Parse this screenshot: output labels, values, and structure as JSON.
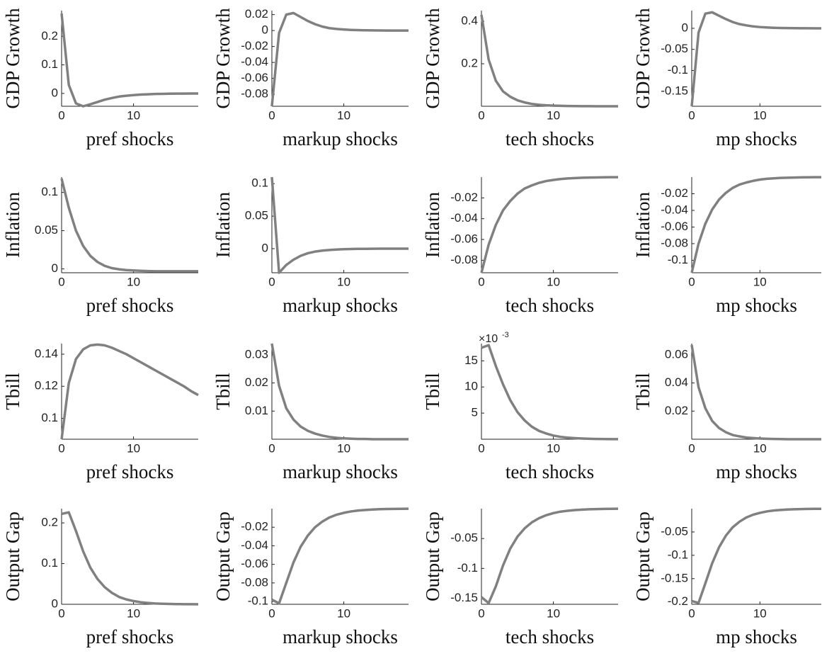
{
  "chart_data": [
    {
      "type": "line",
      "ylabel": "GDP Growth",
      "xlabel": "pref shocks",
      "x": [
        0,
        1,
        2,
        3,
        4,
        5,
        6,
        7,
        8,
        9,
        10,
        11,
        12,
        13,
        14,
        15,
        16,
        17,
        18,
        19
      ],
      "xlim": [
        0,
        19
      ],
      "xticks": [
        0,
        10
      ],
      "ylim": [
        -0.045,
        0.29
      ],
      "yticks": [
        0,
        0.1,
        0.2
      ],
      "series": [
        {
          "color": "#808080",
          "values": [
            0.28,
            0.03,
            -0.035,
            -0.045,
            -0.038,
            -0.03,
            -0.022,
            -0.016,
            -0.011,
            -0.008,
            -0.006,
            -0.004,
            -0.003,
            -0.002,
            -0.0015,
            -0.001,
            -0.0007,
            -0.0005,
            -0.0003,
            -0.0002
          ]
        }
      ]
    },
    {
      "type": "line",
      "ylabel": "GDP Growth",
      "xlabel": "markup shocks",
      "x": [
        0,
        1,
        2,
        3,
        4,
        5,
        6,
        7,
        8,
        9,
        10,
        11,
        12,
        13,
        14,
        15,
        16,
        17,
        18,
        19
      ],
      "xlim": [
        0,
        19
      ],
      "xticks": [
        0,
        10
      ],
      "ylim": [
        -0.095,
        0.025
      ],
      "yticks": [
        -0.08,
        -0.06,
        -0.04,
        -0.02,
        0,
        0.02
      ],
      "series": [
        {
          "color": "#808080",
          "values": [
            -0.095,
            -0.003,
            0.02,
            0.022,
            0.017,
            0.012,
            0.008,
            0.005,
            0.003,
            0.002,
            0.0013,
            0.0008,
            0.0005,
            0.0003,
            0.0002,
            0.0001,
            0,
            0,
            0,
            0
          ]
        }
      ]
    },
    {
      "type": "line",
      "ylabel": "GDP Growth",
      "xlabel": "tech shocks",
      "x": [
        0,
        1,
        2,
        3,
        4,
        5,
        6,
        7,
        8,
        9,
        10,
        11,
        12,
        13,
        14,
        15,
        16,
        17,
        18,
        19
      ],
      "xlim": [
        0,
        19
      ],
      "xticks": [
        0,
        10
      ],
      "ylim": [
        0,
        0.45
      ],
      "yticks": [
        0.2,
        0.4
      ],
      "series": [
        {
          "color": "#808080",
          "values": [
            0.43,
            0.22,
            0.12,
            0.07,
            0.045,
            0.028,
            0.018,
            0.011,
            0.007,
            0.0045,
            0.003,
            0.002,
            0.0012,
            0.0008,
            0.0005,
            0.0003,
            0.0002,
            0.0001,
            0.0001,
            0
          ]
        }
      ]
    },
    {
      "type": "line",
      "ylabel": "GDP Growth",
      "xlabel": "mp shocks",
      "x": [
        0,
        1,
        2,
        3,
        4,
        5,
        6,
        7,
        8,
        9,
        10,
        11,
        12,
        13,
        14,
        15,
        16,
        17,
        18,
        19
      ],
      "xlim": [
        0,
        19
      ],
      "xticks": [
        0,
        10
      ],
      "ylim": [
        -0.185,
        0.042
      ],
      "yticks": [
        -0.15,
        -0.1,
        -0.05,
        0
      ],
      "series": [
        {
          "color": "#808080",
          "values": [
            -0.185,
            -0.01,
            0.035,
            0.038,
            0.03,
            0.022,
            0.015,
            0.01,
            0.007,
            0.0045,
            0.003,
            0.002,
            0.0013,
            0.0008,
            0.0005,
            0.0003,
            0.0002,
            0.0001,
            0,
            0
          ]
        }
      ]
    },
    {
      "type": "line",
      "ylabel": "Inflation",
      "xlabel": "pref shocks",
      "x": [
        0,
        1,
        2,
        3,
        4,
        5,
        6,
        7,
        8,
        9,
        10,
        11,
        12,
        13,
        14,
        15,
        16,
        17,
        18,
        19
      ],
      "xlim": [
        0,
        19
      ],
      "xticks": [
        0,
        10
      ],
      "ylim": [
        -0.005,
        0.12
      ],
      "yticks": [
        0,
        0.05,
        0.1
      ],
      "series": [
        {
          "color": "#808080",
          "values": [
            0.118,
            0.08,
            0.05,
            0.03,
            0.017,
            0.009,
            0.004,
            0.001,
            -0.0005,
            -0.0015,
            -0.002,
            -0.0025,
            -0.0028,
            -0.003,
            -0.003,
            -0.003,
            -0.003,
            -0.003,
            -0.003,
            -0.003
          ]
        }
      ]
    },
    {
      "type": "line",
      "ylabel": "Inflation",
      "xlabel": "markup shocks",
      "x": [
        0,
        1,
        2,
        3,
        4,
        5,
        6,
        7,
        8,
        9,
        10,
        11,
        12,
        13,
        14,
        15,
        16,
        17,
        18,
        19
      ],
      "xlim": [
        0,
        19
      ],
      "xticks": [
        0,
        10
      ],
      "ylim": [
        -0.037,
        0.11
      ],
      "yticks": [
        0,
        0.05,
        0.1
      ],
      "series": [
        {
          "color": "#808080",
          "values": [
            0.11,
            -0.037,
            -0.025,
            -0.017,
            -0.011,
            -0.007,
            -0.0045,
            -0.003,
            -0.002,
            -0.0013,
            -0.0008,
            -0.0005,
            -0.0003,
            -0.0002,
            -0.0001,
            0,
            0,
            0,
            0,
            0
          ]
        }
      ]
    },
    {
      "type": "line",
      "ylabel": "Inflation",
      "xlabel": "tech shocks",
      "x": [
        0,
        1,
        2,
        3,
        4,
        5,
        6,
        7,
        8,
        9,
        10,
        11,
        12,
        13,
        14,
        15,
        16,
        17,
        18,
        19
      ],
      "xlim": [
        0,
        19
      ],
      "xticks": [
        0,
        10
      ],
      "ylim": [
        -0.092,
        0
      ],
      "yticks": [
        -0.08,
        -0.06,
        -0.04,
        -0.02
      ],
      "series": [
        {
          "color": "#808080",
          "values": [
            -0.092,
            -0.065,
            -0.046,
            -0.032,
            -0.023,
            -0.016,
            -0.011,
            -0.008,
            -0.0055,
            -0.0038,
            -0.0027,
            -0.0019,
            -0.0013,
            -0.0009,
            -0.0006,
            -0.0004,
            -0.0003,
            -0.0002,
            -0.0001,
            -0.0001
          ]
        }
      ]
    },
    {
      "type": "line",
      "ylabel": "Inflation",
      "xlabel": "mp shocks",
      "x": [
        0,
        1,
        2,
        3,
        4,
        5,
        6,
        7,
        8,
        9,
        10,
        11,
        12,
        13,
        14,
        15,
        16,
        17,
        18,
        19
      ],
      "xlim": [
        0,
        19
      ],
      "xticks": [
        0,
        10
      ],
      "ylim": [
        -0.115,
        0
      ],
      "yticks": [
        -0.1,
        -0.08,
        -0.06,
        -0.04,
        -0.02
      ],
      "series": [
        {
          "color": "#808080",
          "values": [
            -0.115,
            -0.08,
            -0.056,
            -0.039,
            -0.027,
            -0.019,
            -0.013,
            -0.009,
            -0.0065,
            -0.0045,
            -0.003,
            -0.002,
            -0.0015,
            -0.001,
            -0.0007,
            -0.0005,
            -0.0003,
            -0.0002,
            -0.0001,
            -0.0001
          ]
        }
      ]
    },
    {
      "type": "line",
      "ylabel": "Tbill",
      "xlabel": "pref shocks",
      "x": [
        0,
        1,
        2,
        3,
        4,
        5,
        6,
        7,
        8,
        9,
        10,
        11,
        12,
        13,
        14,
        15,
        16,
        17,
        18,
        19
      ],
      "xlim": [
        0,
        19
      ],
      "xticks": [
        0,
        10
      ],
      "ylim": [
        0.087,
        0.1466
      ],
      "yticks": [
        0.1,
        0.12,
        0.14
      ],
      "series": [
        {
          "color": "#808080",
          "values": [
            0.087,
            0.122,
            0.137,
            0.143,
            0.1455,
            0.146,
            0.1455,
            0.144,
            0.142,
            0.14,
            0.1375,
            0.135,
            0.1325,
            0.13,
            0.1275,
            0.125,
            0.1225,
            0.12,
            0.117,
            0.1145
          ]
        }
      ]
    },
    {
      "type": "line",
      "ylabel": "Tbill",
      "xlabel": "markup shocks",
      "x": [
        0,
        1,
        2,
        3,
        4,
        5,
        6,
        7,
        8,
        9,
        10,
        11,
        12,
        13,
        14,
        15,
        16,
        17,
        18,
        19
      ],
      "xlim": [
        0,
        19
      ],
      "xticks": [
        0,
        10
      ],
      "ylim": [
        0,
        0.034
      ],
      "yticks": [
        0.01,
        0.02,
        0.03
      ],
      "series": [
        {
          "color": "#808080",
          "values": [
            0.034,
            0.019,
            0.011,
            0.007,
            0.0045,
            0.003,
            0.002,
            0.0013,
            0.0008,
            0.0005,
            0.0003,
            0.0002,
            0.0001,
            0.0001,
            0,
            0,
            0,
            0,
            0,
            0
          ]
        }
      ]
    },
    {
      "type": "line",
      "ylabel": "Tbill",
      "xlabel": "tech shocks",
      "y_multiplier": "×10",
      "y_exponent": "-3",
      "x": [
        0,
        1,
        2,
        3,
        4,
        5,
        6,
        7,
        8,
        9,
        10,
        11,
        12,
        13,
        14,
        15,
        16,
        17,
        18,
        19
      ],
      "xlim": [
        0,
        19
      ],
      "xticks": [
        0,
        10
      ],
      "ylim": [
        0,
        18.3
      ],
      "yticks": [
        5,
        10,
        15
      ],
      "series": [
        {
          "color": "#808080",
          "values": [
            17.5,
            18,
            14,
            10.5,
            7.5,
            5.2,
            3.6,
            2.4,
            1.6,
            1.1,
            0.7,
            0.45,
            0.3,
            0.2,
            0.13,
            0.08,
            0.05,
            0.03,
            0.02,
            0.01
          ]
        }
      ]
    },
    {
      "type": "line",
      "ylabel": "Tbill",
      "xlabel": "mp shocks",
      "x": [
        0,
        1,
        2,
        3,
        4,
        5,
        6,
        7,
        8,
        9,
        10,
        11,
        12,
        13,
        14,
        15,
        16,
        17,
        18,
        19
      ],
      "xlim": [
        0,
        19
      ],
      "xticks": [
        0,
        10
      ],
      "ylim": [
        0,
        0.068
      ],
      "yticks": [
        0.02,
        0.04,
        0.06
      ],
      "series": [
        {
          "color": "#808080",
          "values": [
            0.067,
            0.037,
            0.022,
            0.013,
            0.008,
            0.005,
            0.003,
            0.002,
            0.0012,
            0.0008,
            0.0005,
            0.0003,
            0.0002,
            0.0001,
            0,
            0,
            0,
            0,
            0,
            0
          ]
        }
      ]
    },
    {
      "type": "line",
      "ylabel": "Output Gap",
      "xlabel": "pref shocks",
      "x": [
        0,
        1,
        2,
        3,
        4,
        5,
        6,
        7,
        8,
        9,
        10,
        11,
        12,
        13,
        14,
        15,
        16,
        17,
        18,
        19
      ],
      "xlim": [
        0,
        19
      ],
      "xticks": [
        0,
        10
      ],
      "ylim": [
        0,
        0.235
      ],
      "yticks": [
        0,
        0.1,
        0.2
      ],
      "series": [
        {
          "color": "#808080",
          "values": [
            0.222,
            0.226,
            0.18,
            0.13,
            0.09,
            0.062,
            0.042,
            0.028,
            0.018,
            0.012,
            0.008,
            0.005,
            0.0033,
            0.002,
            0.0013,
            0.0008,
            0.0005,
            0.0003,
            0.0002,
            0.0001
          ]
        }
      ]
    },
    {
      "type": "line",
      "ylabel": "Output Gap",
      "xlabel": "markup shocks",
      "x": [
        0,
        1,
        2,
        3,
        4,
        5,
        6,
        7,
        8,
        9,
        10,
        11,
        12,
        13,
        14,
        15,
        16,
        17,
        18,
        19
      ],
      "xlim": [
        0,
        19
      ],
      "xticks": [
        0,
        10
      ],
      "ylim": [
        -0.103,
        0
      ],
      "yticks": [
        -0.1,
        -0.08,
        -0.06,
        -0.04,
        -0.02
      ],
      "series": [
        {
          "color": "#808080",
          "values": [
            -0.098,
            -0.102,
            -0.08,
            -0.058,
            -0.041,
            -0.029,
            -0.02,
            -0.014,
            -0.0095,
            -0.0065,
            -0.0045,
            -0.003,
            -0.002,
            -0.0014,
            -0.001,
            -0.0006,
            -0.0004,
            -0.0003,
            -0.0002,
            -0.0001
          ]
        }
      ]
    },
    {
      "type": "line",
      "ylabel": "Output Gap",
      "xlabel": "tech shocks",
      "x": [
        0,
        1,
        2,
        3,
        4,
        5,
        6,
        7,
        8,
        9,
        10,
        11,
        12,
        13,
        14,
        15,
        16,
        17,
        18,
        19
      ],
      "xlim": [
        0,
        19
      ],
      "xticks": [
        0,
        10
      ],
      "ylim": [
        -0.16,
        0
      ],
      "yticks": [
        -0.15,
        -0.1,
        -0.05
      ],
      "series": [
        {
          "color": "#808080",
          "values": [
            -0.148,
            -0.158,
            -0.13,
            -0.095,
            -0.067,
            -0.047,
            -0.033,
            -0.023,
            -0.016,
            -0.011,
            -0.0075,
            -0.005,
            -0.0035,
            -0.0024,
            -0.0016,
            -0.0011,
            -0.0007,
            -0.0005,
            -0.0003,
            -0.0002
          ]
        }
      ]
    },
    {
      "type": "line",
      "ylabel": "Output Gap",
      "xlabel": "mp shocks",
      "x": [
        0,
        1,
        2,
        3,
        4,
        5,
        6,
        7,
        8,
        9,
        10,
        11,
        12,
        13,
        14,
        15,
        16,
        17,
        18,
        19
      ],
      "xlim": [
        0,
        19
      ],
      "xticks": [
        0,
        10
      ],
      "ylim": [
        -0.205,
        0
      ],
      "yticks": [
        -0.2,
        -0.15,
        -0.1,
        -0.05
      ],
      "series": [
        {
          "color": "#808080",
          "values": [
            -0.198,
            -0.202,
            -0.16,
            -0.117,
            -0.083,
            -0.058,
            -0.04,
            -0.028,
            -0.019,
            -0.013,
            -0.009,
            -0.006,
            -0.004,
            -0.0028,
            -0.0019,
            -0.0013,
            -0.0009,
            -0.0006,
            -0.0004,
            -0.0003
          ]
        }
      ]
    }
  ]
}
